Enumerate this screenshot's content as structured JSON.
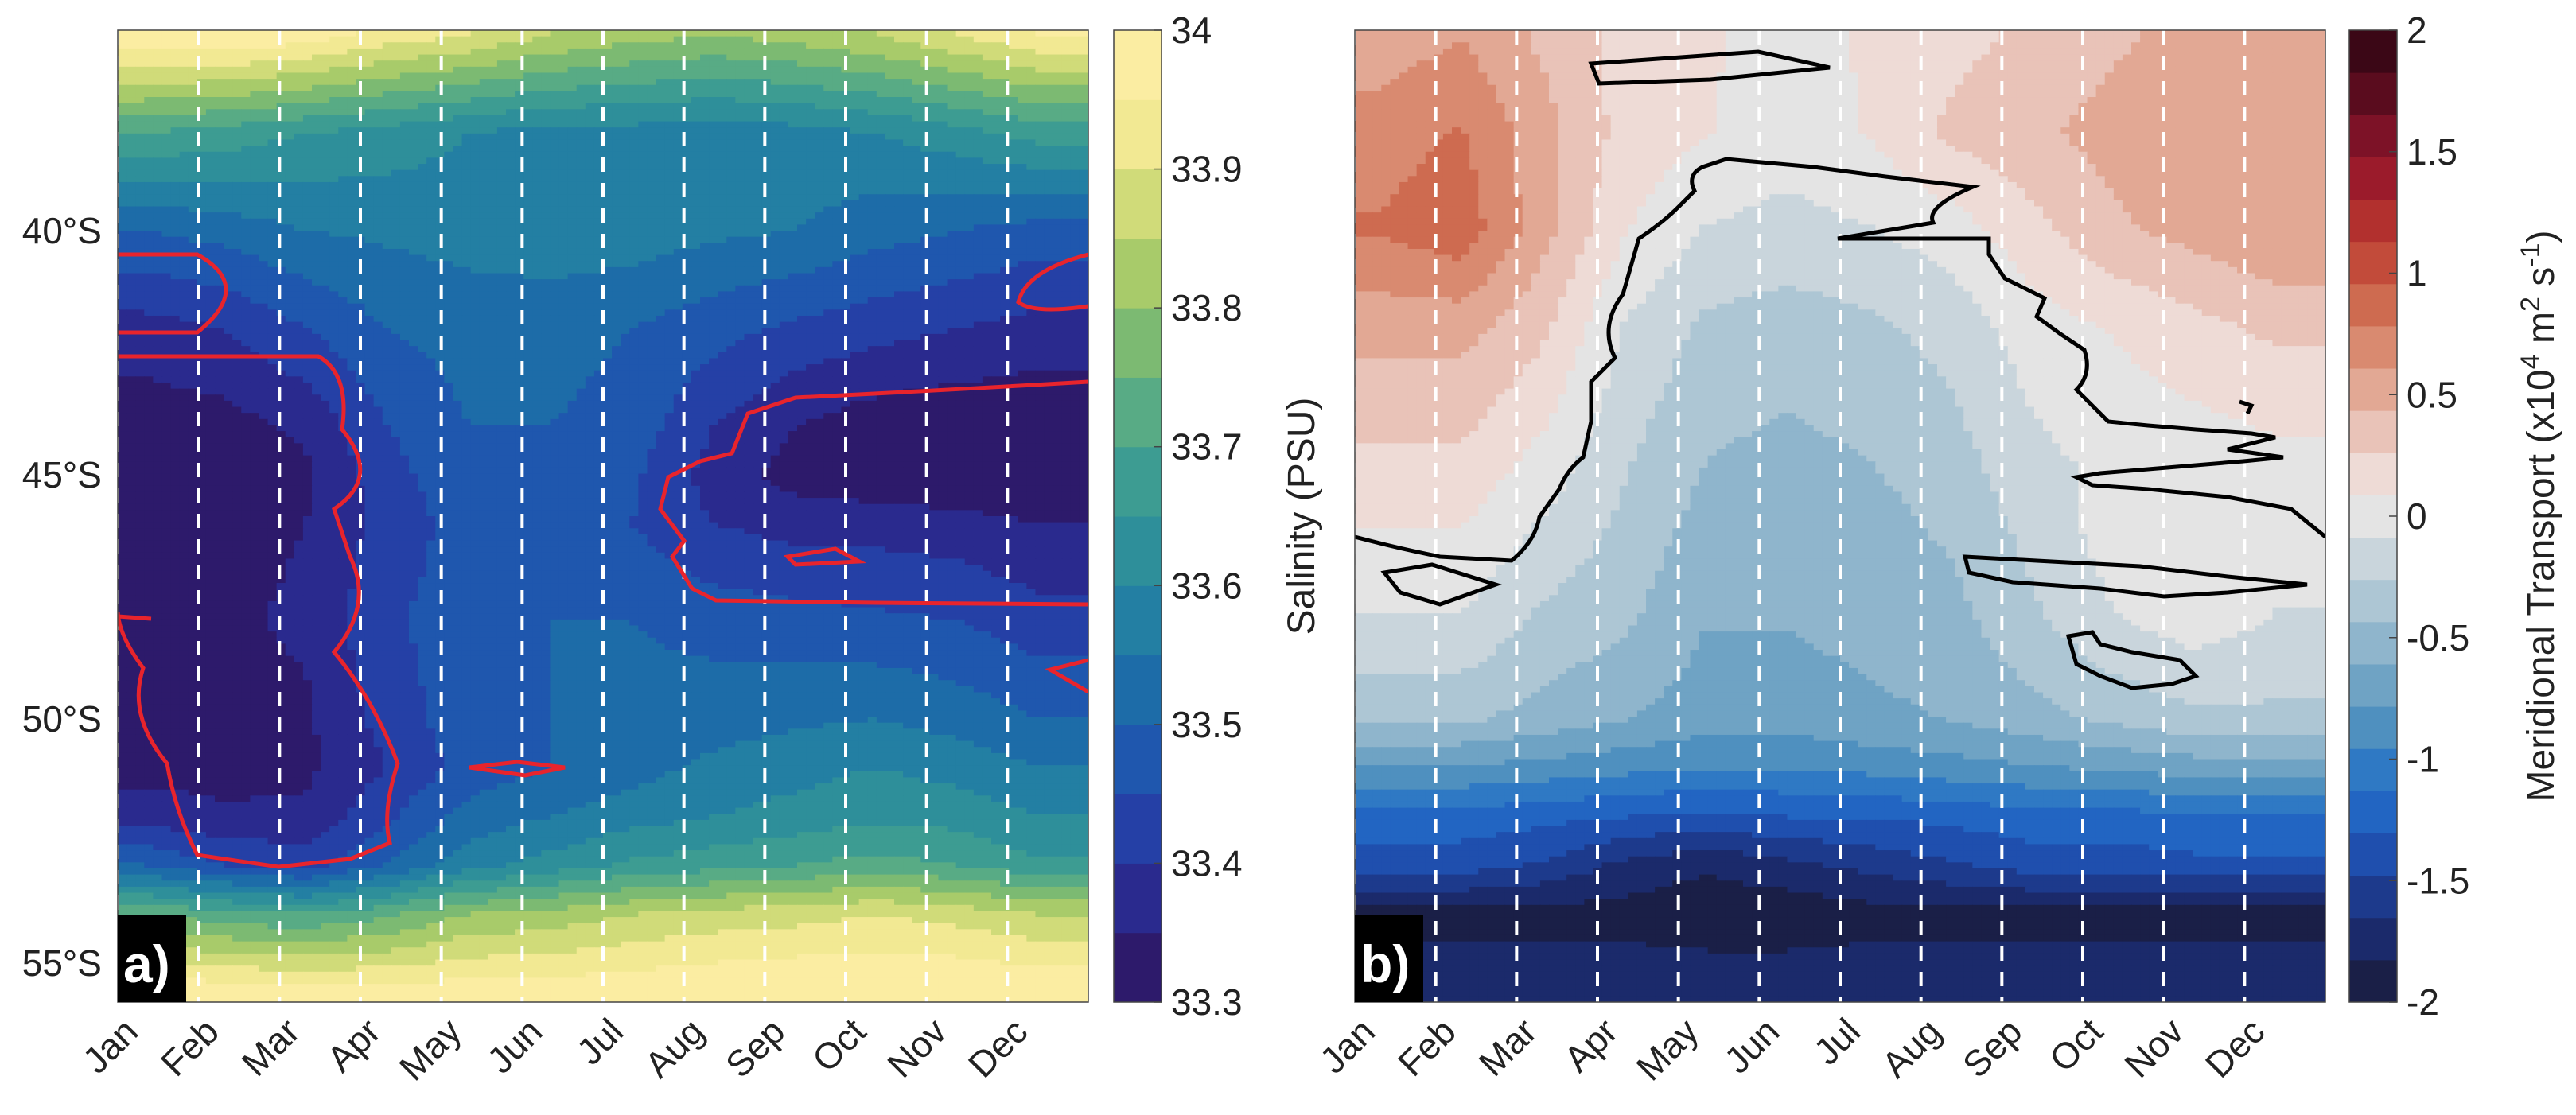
{
  "chart_data": [
    {
      "type": "heatmap",
      "panel_label": "a)",
      "x_categories": [
        "Jan",
        "Feb",
        "Mar",
        "Apr",
        "May",
        "Jun",
        "Jul",
        "Aug",
        "Sep",
        "Oct",
        "Nov",
        "Dec"
      ],
      "y_tick_labels": [
        "40°S",
        "45°S",
        "50°S",
        "55°S"
      ],
      "y_tick_values": [
        -40,
        -45,
        -50,
        -55
      ],
      "ylim": [
        -55.8,
        -35.9
      ],
      "colorbar": {
        "label": "Salinity (PSU)",
        "tick_labels": [
          "34",
          "33.9",
          "33.8",
          "33.7",
          "33.6",
          "33.5",
          "33.4",
          "33.3"
        ],
        "tick_values": [
          34.0,
          33.9,
          33.8,
          33.7,
          33.6,
          33.5,
          33.4,
          33.3
        ],
        "range": [
          33.3,
          34.0
        ],
        "colors": [
          "#2d1a6b",
          "#2a2a8e",
          "#2540a6",
          "#1f57ae",
          "#1d6ca8",
          "#237fa3",
          "#2e8f9a",
          "#3d9c92",
          "#58ab85",
          "#7cba72",
          "#a8cb6a",
          "#d0db79",
          "#f2e993",
          "#fbeda2"
        ]
      },
      "contour_color": "#e8242c",
      "data_summary": {
        "lat": [
          -36,
          -38,
          -40,
          -42,
          -44,
          -45,
          -46,
          -48,
          -50,
          -51,
          -52,
          -53,
          -54,
          -55.5
        ],
        "months": [
          1,
          2,
          3,
          4,
          5,
          6,
          7,
          8,
          9,
          10,
          11,
          12
        ],
        "salinity_psu": [
          [
            34.0,
            34.0,
            33.98,
            33.93,
            33.9,
            33.85,
            33.82,
            33.8,
            33.82,
            33.85,
            33.9,
            33.95
          ],
          [
            33.7,
            33.68,
            33.65,
            33.63,
            33.6,
            33.58,
            33.58,
            33.57,
            33.58,
            33.6,
            33.63,
            33.67
          ],
          [
            33.5,
            33.52,
            33.55,
            33.56,
            33.57,
            33.58,
            33.58,
            33.56,
            33.55,
            33.52,
            33.5,
            33.48
          ],
          [
            33.38,
            33.4,
            33.45,
            33.5,
            33.52,
            33.52,
            33.5,
            33.47,
            33.44,
            33.42,
            33.4,
            33.38
          ],
          [
            33.32,
            33.33,
            33.36,
            33.45,
            33.5,
            33.5,
            33.48,
            33.4,
            33.35,
            33.32,
            33.31,
            33.31
          ],
          [
            33.31,
            33.32,
            33.34,
            33.43,
            33.49,
            33.49,
            33.46,
            33.38,
            33.33,
            33.31,
            33.3,
            33.3
          ],
          [
            33.32,
            33.33,
            33.35,
            33.42,
            33.47,
            33.48,
            33.45,
            33.4,
            33.38,
            33.38,
            33.37,
            33.35
          ],
          [
            33.35,
            33.34,
            33.36,
            33.44,
            33.48,
            33.5,
            33.5,
            33.48,
            33.47,
            33.46,
            33.45,
            33.42
          ],
          [
            33.34,
            33.33,
            33.34,
            33.42,
            33.48,
            33.5,
            33.52,
            33.53,
            33.54,
            33.55,
            33.53,
            33.5
          ],
          [
            33.33,
            33.33,
            33.34,
            33.4,
            33.47,
            33.5,
            33.53,
            33.56,
            33.58,
            33.6,
            33.58,
            33.55
          ],
          [
            33.38,
            33.36,
            33.36,
            33.44,
            33.52,
            33.55,
            33.58,
            33.6,
            33.62,
            33.64,
            33.63,
            33.6
          ],
          [
            33.5,
            33.45,
            33.43,
            33.5,
            33.58,
            33.62,
            33.66,
            33.68,
            33.7,
            33.72,
            33.7,
            33.66
          ],
          [
            33.75,
            33.72,
            33.7,
            33.74,
            33.8,
            33.82,
            33.85,
            33.87,
            33.88,
            33.9,
            33.88,
            33.85
          ],
          [
            33.98,
            33.97,
            33.96,
            33.96,
            33.97,
            33.97,
            33.98,
            33.99,
            34.0,
            34.0,
            34.0,
            33.99
          ]
        ]
      }
    },
    {
      "type": "heatmap",
      "panel_label": "b)",
      "x_categories": [
        "Jan",
        "Feb",
        "Mar",
        "Apr",
        "May",
        "Jun",
        "Jul",
        "Aug",
        "Sep",
        "Oct",
        "Nov",
        "Dec"
      ],
      "ylim": [
        -55.8,
        -35.9
      ],
      "colorbar": {
        "label_prefix": "Meridional Transport (x10",
        "label_exp1": "4",
        "label_mid": " m",
        "label_exp2": "2",
        "label_mid2": " s",
        "label_exp3": "-1",
        "label_suffix": ")",
        "tick_labels": [
          "2",
          "1.5",
          "1",
          "0.5",
          "0",
          "-0.5",
          "-1",
          "-1.5",
          "-2"
        ],
        "tick_values": [
          2,
          1.5,
          1,
          0.5,
          0,
          -0.5,
          -1,
          -1.5,
          -2
        ],
        "range": [
          -2,
          2
        ],
        "colors": [
          "#1a1f47",
          "#1b2a6b",
          "#1d3a8c",
          "#1f4fae",
          "#2265c2",
          "#2f79c4",
          "#4f90bf",
          "#6fa3c4",
          "#8fb5cc",
          "#adc6d4",
          "#c9d5dc",
          "#e4e4e4",
          "#eedbd6",
          "#e9c3b8",
          "#e2a894",
          "#d98a70",
          "#ce6b50",
          "#c24b3a",
          "#b2302e",
          "#9b1b2b",
          "#7d1227",
          "#5a0c1e",
          "#3b0716"
        ]
      },
      "contour_color": "#000000",
      "data_summary": {
        "lat": [
          -36,
          -38,
          -40,
          -42,
          -44,
          -45,
          -46,
          -48,
          -50,
          -51,
          -52,
          -53,
          -54,
          -55.5
        ],
        "months": [
          1,
          2,
          3,
          4,
          5,
          6,
          7,
          8,
          9,
          10,
          11,
          12
        ],
        "transport": [
          [
            0.5,
            0.6,
            0.4,
            0.2,
            0.1,
            0.05,
            0.1,
            0.2,
            0.3,
            0.4,
            0.5,
            0.5
          ],
          [
            0.7,
            0.8,
            0.5,
            0.2,
            0.1,
            0.0,
            0.1,
            0.3,
            0.4,
            0.5,
            0.6,
            0.6
          ],
          [
            0.8,
            0.9,
            0.5,
            0.1,
            -0.1,
            -0.15,
            -0.1,
            0.0,
            0.2,
            0.4,
            0.5,
            0.6
          ],
          [
            0.5,
            0.5,
            0.3,
            -0.1,
            -0.3,
            -0.35,
            -0.3,
            -0.2,
            0.0,
            0.1,
            0.2,
            0.3
          ],
          [
            0.3,
            0.3,
            0.1,
            -0.2,
            -0.4,
            -0.45,
            -0.4,
            -0.3,
            -0.1,
            0.0,
            0.05,
            0.1
          ],
          [
            0.2,
            0.2,
            0.0,
            -0.25,
            -0.45,
            -0.5,
            -0.45,
            -0.35,
            -0.15,
            -0.05,
            0.0,
            0.05
          ],
          [
            0.1,
            0.1,
            -0.1,
            -0.3,
            -0.5,
            -0.55,
            -0.5,
            -0.4,
            -0.2,
            0.0,
            0.05,
            0.0
          ],
          [
            -0.1,
            -0.1,
            -0.3,
            -0.4,
            -0.6,
            -0.6,
            -0.55,
            -0.5,
            -0.3,
            -0.1,
            0.0,
            -0.1
          ],
          [
            -0.4,
            -0.4,
            -0.5,
            -0.6,
            -0.7,
            -0.7,
            -0.65,
            -0.6,
            -0.5,
            -0.4,
            -0.3,
            -0.3
          ],
          [
            -0.8,
            -0.8,
            -0.85,
            -0.9,
            -0.95,
            -0.95,
            -0.9,
            -0.85,
            -0.8,
            -0.75,
            -0.7,
            -0.7
          ],
          [
            -1.2,
            -1.2,
            -1.25,
            -1.3,
            -1.35,
            -1.3,
            -1.3,
            -1.25,
            -1.2,
            -1.2,
            -1.15,
            -1.15
          ],
          [
            -1.4,
            -1.4,
            -1.5,
            -1.7,
            -1.8,
            -1.7,
            -1.6,
            -1.5,
            -1.4,
            -1.4,
            -1.35,
            -1.35
          ],
          [
            -1.9,
            -1.9,
            -1.9,
            -1.9,
            -1.95,
            -1.95,
            -1.9,
            -1.9,
            -1.9,
            -1.9,
            -1.9,
            -1.9
          ],
          [
            -1.7,
            -1.7,
            -1.7,
            -1.7,
            -1.7,
            -1.7,
            -1.7,
            -1.7,
            -1.7,
            -1.7,
            -1.7,
            -1.7
          ]
        ]
      }
    }
  ]
}
